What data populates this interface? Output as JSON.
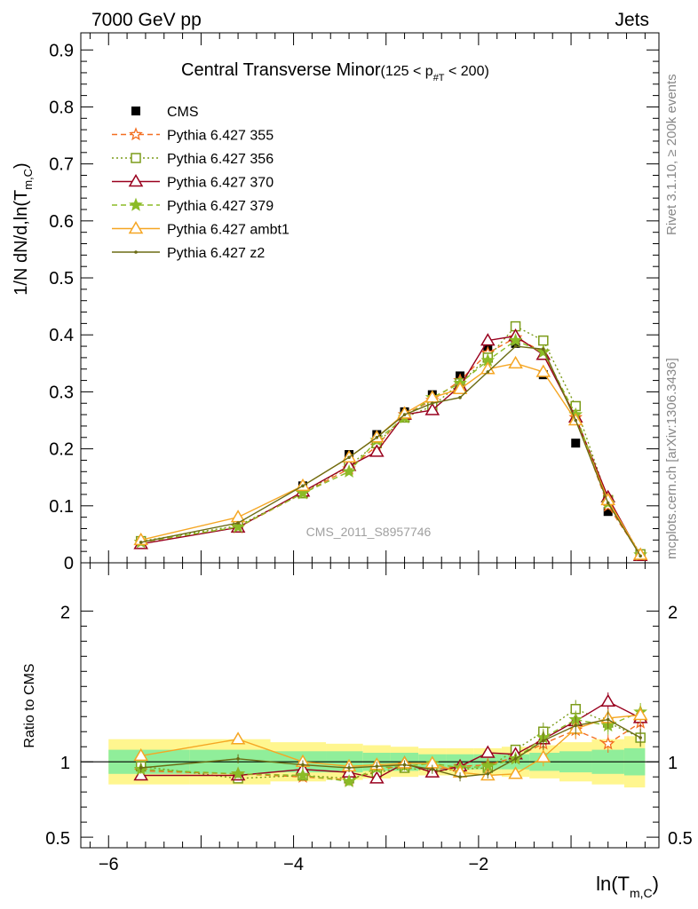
{
  "header": {
    "left": "7000 GeV pp",
    "right": "Jets"
  },
  "plot_title": {
    "main": "Central Transverse Minor",
    "cut": "(125 < p",
    "cut_sub": "#T",
    "cut_end": " < 200)"
  },
  "y_axis_label": {
    "main": "1/N",
    "main2": " dN/d,ln(T",
    "sub": "m,C",
    "close": ")"
  },
  "ratio_ylabel": "Ratio to CMS",
  "x_axis_label": {
    "main": "ln(T",
    "sub": "m,C",
    "close": ")"
  },
  "watermark": "CMS_2011_S8957746",
  "side_top": "Rivet 3.1.10, ≥ 200k events",
  "side_bottom": "mcplots.cern.ch [arXiv:1306.3436]",
  "colors": {
    "cms": "#000000",
    "p355": "#f36f21",
    "p356": "#7c9c1a",
    "p370": "#99001e",
    "p379": "#8bbb27",
    "ambt1": "#f5a623",
    "z2": "#6b6b14",
    "band_inner": "#90ee9a",
    "band_outer": "#fff68f"
  },
  "chart_data": {
    "type": "line",
    "x": [
      -5.65,
      -4.6,
      -3.9,
      -3.4,
      -3.1,
      -2.8,
      -2.5,
      -2.2,
      -1.9,
      -1.6,
      -1.3,
      -0.95,
      -0.6,
      -0.25
    ],
    "xlim": [
      -6.3,
      -0.05
    ],
    "x_ticks": [
      "−6",
      "−4",
      "−2"
    ],
    "x_tick_values": [
      -6,
      -4,
      -2
    ],
    "main_ylim": [
      0,
      0.93
    ],
    "main_y_ticks": [
      "0",
      "0.1",
      "0.2",
      "0.3",
      "0.4",
      "0.5",
      "0.6",
      "0.7",
      "0.8",
      "0.9"
    ],
    "main_y_tick_values": [
      0,
      0.1,
      0.2,
      0.3,
      0.4,
      0.5,
      0.6,
      0.7,
      0.8,
      0.9
    ],
    "ratio_ylim": [
      0.43,
      2.32
    ],
    "ratio_y_ticks": [
      "0.5",
      "1",
      "2"
    ],
    "ratio_y_tick_values": [
      0.5,
      1,
      2
    ],
    "legend_placement": "top-left",
    "series": [
      {
        "key": "cms",
        "name": "CMS",
        "values": [
          0.038,
          0.068,
          0.135,
          0.19,
          0.225,
          0.265,
          0.295,
          0.328,
          0.375,
          0.385,
          0.33,
          0.21,
          0.09,
          0.012
        ],
        "ratio": [
          1,
          1,
          1,
          1,
          1,
          1,
          1,
          1,
          1,
          1,
          1,
          1,
          1,
          1
        ]
      },
      {
        "key": "p355",
        "name": "Pythia 6.427 355",
        "values": [
          0.036,
          0.062,
          0.122,
          0.165,
          0.205,
          0.26,
          0.285,
          0.32,
          0.368,
          0.395,
          0.37,
          0.255,
          0.1,
          0.014
        ],
        "ratio": [
          0.94,
          0.92,
          0.9,
          0.88,
          0.94,
          0.98,
          0.95,
          0.97,
          0.98,
          1.03,
          1.12,
          1.21,
          1.12,
          1.26
        ]
      },
      {
        "key": "p356",
        "name": "Pythia 6.427 356",
        "values": [
          0.038,
          0.065,
          0.122,
          0.17,
          0.21,
          0.255,
          0.275,
          0.315,
          0.36,
          0.415,
          0.39,
          0.275,
          0.11,
          0.015
        ],
        "ratio": [
          0.97,
          0.89,
          0.91,
          0.89,
          0.93,
          0.96,
          0.94,
          0.95,
          0.96,
          1.08,
          1.2,
          1.35,
          1.26,
          1.16
        ]
      },
      {
        "key": "p370",
        "name": "Pythia 6.427 370",
        "values": [
          0.033,
          0.062,
          0.125,
          0.17,
          0.195,
          0.26,
          0.268,
          0.31,
          0.39,
          0.398,
          0.365,
          0.255,
          0.115,
          0.012
        ],
        "ratio": [
          0.91,
          0.91,
          0.95,
          0.93,
          0.89,
          0.99,
          0.93,
          0.97,
          1.06,
          1.05,
          1.15,
          1.27,
          1.4,
          1.29
        ]
      },
      {
        "key": "p379",
        "name": "Pythia 6.427 379",
        "values": [
          0.036,
          0.063,
          0.122,
          0.16,
          0.215,
          0.255,
          0.29,
          0.315,
          0.355,
          0.39,
          0.37,
          0.26,
          0.105,
          0.014
        ],
        "ratio": [
          0.95,
          0.92,
          0.91,
          0.87,
          0.96,
          0.97,
          0.99,
          0.96,
          0.97,
          1.02,
          1.16,
          1.28,
          1.24,
          1.33
        ]
      },
      {
        "key": "ambt1",
        "name": "Pythia 6.427 ambt1",
        "values": [
          0.04,
          0.08,
          0.135,
          0.185,
          0.22,
          0.262,
          0.29,
          0.305,
          0.34,
          0.35,
          0.335,
          0.25,
          0.11,
          0.014
        ],
        "ratio": [
          1.04,
          1.15,
          1.0,
          0.97,
          0.98,
          0.99,
          0.99,
          0.93,
          0.91,
          0.92,
          1.03,
          1.22,
          1.29,
          1.31
        ]
      },
      {
        "key": "z2",
        "name": "Pythia 6.427 z2",
        "values": [
          0.036,
          0.07,
          0.135,
          0.185,
          0.22,
          0.26,
          0.28,
          0.29,
          0.335,
          0.38,
          0.375,
          0.25,
          0.105,
          0.012
        ],
        "ratio": [
          0.96,
          1.02,
          0.98,
          0.96,
          0.97,
          0.98,
          0.95,
          0.9,
          0.92,
          1.02,
          1.14,
          1.24,
          1.28,
          1.16
        ]
      }
    ],
    "band_inner": [
      0.08,
      0.08,
      0.07,
      0.07,
      0.06,
      0.06,
      0.05,
      0.05,
      0.05,
      0.05,
      0.06,
      0.07,
      0.08,
      0.09
    ],
    "band_outer": [
      0.15,
      0.15,
      0.13,
      0.12,
      0.11,
      0.1,
      0.09,
      0.09,
      0.09,
      0.1,
      0.11,
      0.13,
      0.15,
      0.17
    ]
  }
}
